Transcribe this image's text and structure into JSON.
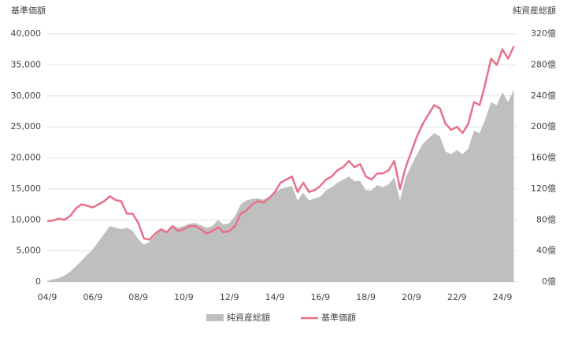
{
  "chart_data": {
    "type": "area-line",
    "ylabel": "基準価額",
    "y2label": "純資産総額",
    "categories": [
      "04/9",
      null,
      null,
      null,
      null,
      null,
      null,
      null,
      "06/9",
      null,
      null,
      null,
      null,
      null,
      null,
      null,
      "08/9",
      null,
      null,
      null,
      null,
      null,
      null,
      null,
      "10/9",
      null,
      null,
      null,
      null,
      null,
      null,
      null,
      "12/9",
      null,
      null,
      null,
      null,
      null,
      null,
      null,
      "14/9",
      null,
      null,
      null,
      null,
      null,
      null,
      null,
      "16/9",
      null,
      null,
      null,
      null,
      null,
      null,
      null,
      "18/9",
      null,
      null,
      null,
      null,
      null,
      null,
      null,
      "20/9",
      null,
      null,
      null,
      null,
      null,
      null,
      null,
      "22/9",
      null,
      null,
      null,
      null,
      null,
      null,
      null,
      "24/9",
      null,
      null
    ],
    "series": [
      {
        "name": "純資産総額",
        "color": "#bfbfbf",
        "axis": "y2",
        "kind": "area",
        "values": [
          1,
          3,
          5,
          8,
          13,
          20,
          27,
          35,
          42,
          52,
          62,
          72,
          70,
          68,
          70,
          66,
          55,
          48,
          52,
          60,
          68,
          66,
          72,
          70,
          72,
          75,
          76,
          73,
          70,
          72,
          80,
          74,
          76,
          85,
          100,
          105,
          107,
          108,
          106,
          110,
          115,
          120,
          122,
          124,
          105,
          115,
          105,
          108,
          110,
          118,
          122,
          128,
          132,
          136,
          130,
          130,
          118,
          118,
          125,
          122,
          126,
          135,
          105,
          135,
          150,
          165,
          178,
          185,
          192,
          188,
          168,
          165,
          170,
          165,
          172,
          195,
          192,
          210,
          232,
          228,
          245,
          232,
          248
        ]
      },
      {
        "name": "基準価額",
        "color": "#e8708a",
        "kind": "line",
        "values": [
          9800,
          9900,
          10200,
          10000,
          10600,
          11800,
          12500,
          12300,
          12000,
          12500,
          13000,
          13800,
          13200,
          13000,
          11000,
          11000,
          9500,
          7000,
          6800,
          7800,
          8500,
          8000,
          9000,
          8200,
          8500,
          9000,
          9000,
          8500,
          7800,
          8200,
          8800,
          8000,
          8200,
          9000,
          11000,
          11500,
          12500,
          13000,
          12800,
          13500,
          14500,
          16000,
          16500,
          17000,
          14500,
          16000,
          14500,
          14800,
          15500,
          16500,
          17000,
          18000,
          18500,
          19500,
          18500,
          19000,
          17000,
          16500,
          17500,
          17500,
          18000,
          19500,
          15000,
          18500,
          21000,
          23500,
          25500,
          27000,
          28500,
          28000,
          25500,
          24500,
          25000,
          24000,
          25500,
          29000,
          28500,
          32000,
          36000,
          35000,
          37500,
          36000,
          38000
        ]
      }
    ],
    "ylim": [
      0,
      40000
    ],
    "yticks": [
      0,
      {
        "value": 5000,
        "label": "5,000"
      },
      {
        "value": 10000,
        "label": "10,000"
      },
      {
        "value": 15000,
        "label": "15,000"
      },
      {
        "value": 20000,
        "label": "20,000"
      },
      {
        "value": 25000,
        "label": "25,000"
      },
      {
        "value": 30000,
        "label": "30,000"
      },
      {
        "value": 35000,
        "label": "35,000"
      },
      {
        "value": 40000,
        "label": "40,000"
      }
    ],
    "y2lim": [
      0,
      320
    ],
    "y2ticks": [
      {
        "value": 0,
        "label": "0億"
      },
      {
        "value": 40,
        "label": "40億"
      },
      {
        "value": 80,
        "label": "80億"
      },
      {
        "value": 120,
        "label": "120億"
      },
      {
        "value": 160,
        "label": "160億"
      },
      {
        "value": 200,
        "label": "200億"
      },
      {
        "value": 240,
        "label": "240億"
      },
      {
        "value": 280,
        "label": "280億"
      },
      {
        "value": 320,
        "label": "320億"
      }
    ],
    "grid": true
  }
}
